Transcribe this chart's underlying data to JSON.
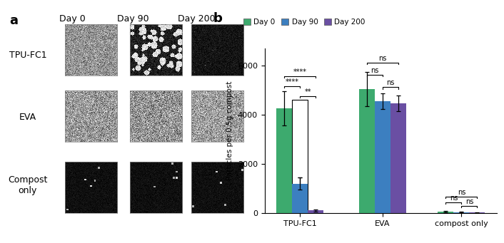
{
  "groups": [
    "TPU-FC1",
    "EVA",
    "compost only"
  ],
  "days": [
    "Day 0",
    "Day 90",
    "Day 200"
  ],
  "bar_colors": [
    "#3daa6e",
    "#3c7fc0",
    "#6a4fa3"
  ],
  "bar_values": {
    "TPU-FC1": [
      4250,
      1200,
      100
    ],
    "EVA": [
      5050,
      4550,
      4450
    ],
    "compost only": [
      60,
      35,
      25
    ]
  },
  "bar_errors": {
    "TPU-FC1": [
      700,
      250,
      50
    ],
    "EVA": [
      700,
      320,
      320
    ],
    "compost only": [
      35,
      20,
      15
    ]
  },
  "ylabel": "Particles per 0.5g compost",
  "ylim": [
    0,
    6700
  ],
  "yticks": [
    0,
    2000,
    4000,
    6000
  ],
  "background_color": "#ffffff",
  "panel_a_label": "a",
  "panel_b_label": "b"
}
